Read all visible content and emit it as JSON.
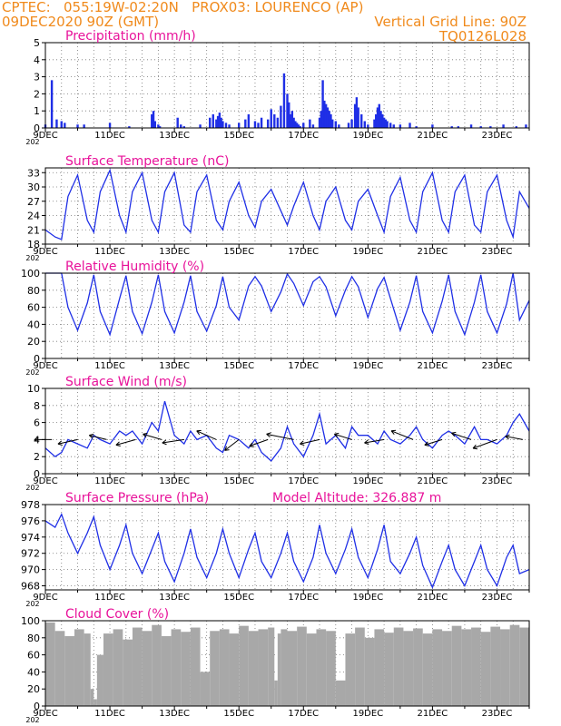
{
  "header": {
    "line1": "CPTEC:   055:19W-02:20N   PROX03: LOURENCO (AP)",
    "line2": "09DEC2020 90Z (GMT)",
    "grid_note": "Vertical Grid Line: 90Z",
    "run_id": "TQ0126L028"
  },
  "colors": {
    "header": "#f08a1c",
    "title": "#e8129a",
    "series": "#1f2fe6",
    "cloud": "#a8a8a8"
  },
  "x_ticks": [
    "9DEC",
    "11DEC",
    "13DEC",
    "15DEC",
    "17DEC",
    "19DEC",
    "21DEC",
    "23DEC"
  ],
  "x_year": "202",
  "chart_data": [
    {
      "id": "precip",
      "type": "bar",
      "title": "Precipitation (mm/h)",
      "ylim": [
        0,
        5
      ],
      "yticks": [
        0,
        1,
        2,
        3,
        4,
        5
      ],
      "x": [
        0,
        0.2,
        0.35,
        0.5,
        0.6,
        1.0,
        1.2,
        2.0,
        2.6,
        3.3,
        3.35,
        3.4,
        3.5,
        3.55,
        4.1,
        4.2,
        4.3,
        4.8,
        5.1,
        5.2,
        5.3,
        5.35,
        5.4,
        5.45,
        5.5,
        5.6,
        5.7,
        6.0,
        6.2,
        6.3,
        6.5,
        6.6,
        6.7,
        6.9,
        7.0,
        7.1,
        7.2,
        7.3,
        7.4,
        7.5,
        7.55,
        7.6,
        7.65,
        7.7,
        7.75,
        7.8,
        7.85,
        7.9,
        8.0,
        8.2,
        8.3,
        8.5,
        8.55,
        8.6,
        8.65,
        8.7,
        8.75,
        8.8,
        8.85,
        8.9,
        9.0,
        9.1,
        9.4,
        9.5,
        9.6,
        9.65,
        9.7,
        9.8,
        9.9,
        10.0,
        10.2,
        10.25,
        10.3,
        10.35,
        10.4,
        10.45,
        10.5,
        10.55,
        10.6,
        10.7,
        10.8,
        11.0,
        11.3,
        11.5,
        12.0,
        12.6,
        12.8,
        13.2,
        13.5,
        13.8,
        14.2,
        14.6,
        14.9
      ],
      "values": [
        0.2,
        2.8,
        0.5,
        0.4,
        0.3,
        0.2,
        0.2,
        0.3,
        0.1,
        0.8,
        1.0,
        0.4,
        0.2,
        0.1,
        0.6,
        0.2,
        0.1,
        0.2,
        0.6,
        0.8,
        0.5,
        0.7,
        0.9,
        0.6,
        0.4,
        0.3,
        0.2,
        0.3,
        0.5,
        0.8,
        0.4,
        0.3,
        0.6,
        0.5,
        1.1,
        0.8,
        0.6,
        1.3,
        3.2,
        2.0,
        1.5,
        0.8,
        1.0,
        0.6,
        0.4,
        0.3,
        0.2,
        0.1,
        0.3,
        0.5,
        0.2,
        0.6,
        1.0,
        2.8,
        1.6,
        1.4,
        1.2,
        1.0,
        0.8,
        0.5,
        0.4,
        0.2,
        0.3,
        0.5,
        1.4,
        1.8,
        1.2,
        0.8,
        0.4,
        0.2,
        0.5,
        0.8,
        1.2,
        1.4,
        1.0,
        0.8,
        0.6,
        0.5,
        0.4,
        0.3,
        0.2,
        0.2,
        0.3,
        0.1,
        0.2,
        0.1,
        0.1,
        0.2,
        0.1,
        0.1,
        0.2,
        0.1,
        0.2
      ]
    },
    {
      "id": "temp",
      "type": "line",
      "title": "Surface Temperature (nC)",
      "ylim": [
        18,
        34
      ],
      "yticks": [
        18,
        21,
        24,
        27,
        30,
        33
      ],
      "x": [
        0.0,
        0.3,
        0.5,
        0.7,
        1.0,
        1.3,
        1.5,
        1.7,
        2.0,
        2.3,
        2.5,
        2.7,
        3.0,
        3.3,
        3.5,
        3.7,
        4.0,
        4.3,
        4.5,
        4.7,
        5.0,
        5.3,
        5.5,
        5.7,
        6.0,
        6.3,
        6.5,
        6.7,
        7.0,
        7.3,
        7.5,
        7.7,
        8.0,
        8.3,
        8.5,
        8.7,
        9.0,
        9.3,
        9.5,
        9.7,
        10.0,
        10.3,
        10.5,
        10.7,
        11.0,
        11.3,
        11.5,
        11.7,
        12.0,
        12.3,
        12.5,
        12.7,
        13.0,
        13.3,
        13.5,
        13.7,
        14.0,
        14.3,
        14.5,
        14.7,
        15.0
      ],
      "values": [
        21,
        19.5,
        19.0,
        28,
        32.5,
        23,
        20.5,
        29,
        33.5,
        24,
        20.5,
        29,
        33.0,
        23,
        20.5,
        29,
        33.0,
        22,
        20.5,
        29,
        32.5,
        23,
        21.0,
        27,
        31.0,
        24,
        21.5,
        27,
        29.5,
        25,
        22.0,
        26,
        31.0,
        24,
        21.0,
        27,
        30.0,
        23,
        21.0,
        27,
        29.5,
        24,
        20.5,
        28,
        32.0,
        23,
        20.5,
        29,
        33.0,
        23,
        20.5,
        29,
        32.5,
        22,
        20.5,
        29,
        32.5,
        23,
        19.5,
        29,
        25.5
      ]
    },
    {
      "id": "rh",
      "type": "line",
      "title": "Relative Humidity (%)",
      "ylim": [
        0,
        100
      ],
      "yticks": [
        0,
        20,
        40,
        60,
        80,
        100
      ],
      "x": [
        0.0,
        0.3,
        0.5,
        0.7,
        1.0,
        1.3,
        1.5,
        1.7,
        2.0,
        2.3,
        2.5,
        2.7,
        3.0,
        3.3,
        3.5,
        3.7,
        4.0,
        4.3,
        4.5,
        4.7,
        5.0,
        5.3,
        5.5,
        5.7,
        6.0,
        6.3,
        6.5,
        6.7,
        7.0,
        7.3,
        7.5,
        7.7,
        8.0,
        8.3,
        8.5,
        8.7,
        9.0,
        9.3,
        9.5,
        9.7,
        10.0,
        10.3,
        10.5,
        10.7,
        11.0,
        11.3,
        11.5,
        11.7,
        12.0,
        12.3,
        12.5,
        12.7,
        13.0,
        13.3,
        13.5,
        13.7,
        14.0,
        14.3,
        14.5,
        14.7,
        15.0
      ],
      "values": [
        100,
        100,
        100,
        60,
        33,
        65,
        98,
        55,
        28,
        70,
        97,
        55,
        29,
        66,
        98,
        55,
        30,
        66,
        97,
        55,
        32,
        62,
        96,
        60,
        45,
        85,
        96,
        85,
        55,
        78,
        99,
        88,
        62,
        90,
        96,
        84,
        50,
        80,
        96,
        84,
        48,
        82,
        95,
        70,
        33,
        66,
        97,
        55,
        30,
        67,
        98,
        55,
        28,
        66,
        98,
        55,
        30,
        64,
        100,
        45,
        68
      ]
    },
    {
      "id": "wind",
      "type": "line",
      "title": "Surface Wind (m/s)",
      "ylim": [
        0,
        10
      ],
      "yticks": [
        0,
        2,
        4,
        6,
        8,
        10
      ],
      "x": [
        0.0,
        0.3,
        0.5,
        0.7,
        1.0,
        1.3,
        1.5,
        1.7,
        2.0,
        2.3,
        2.5,
        2.7,
        3.0,
        3.3,
        3.5,
        3.7,
        4.0,
        4.3,
        4.5,
        4.7,
        5.0,
        5.3,
        5.5,
        5.7,
        6.0,
        6.3,
        6.5,
        6.7,
        7.0,
        7.3,
        7.5,
        7.7,
        8.0,
        8.3,
        8.5,
        8.7,
        9.0,
        9.3,
        9.5,
        9.7,
        10.0,
        10.3,
        10.5,
        10.7,
        11.0,
        11.3,
        11.5,
        11.7,
        12.0,
        12.3,
        12.5,
        12.7,
        13.0,
        13.3,
        13.5,
        13.7,
        14.0,
        14.3,
        14.5,
        14.7,
        15.0
      ],
      "values": [
        3.0,
        2.0,
        2.5,
        4.0,
        3.5,
        3.0,
        4.5,
        4.0,
        3.5,
        5.0,
        4.5,
        5.0,
        3.5,
        6.0,
        5.0,
        8.5,
        4.5,
        3.5,
        5.0,
        4.0,
        4.5,
        3.0,
        2.5,
        4.5,
        4.0,
        3.0,
        4.0,
        2.5,
        1.5,
        3.0,
        5.5,
        3.5,
        2.0,
        4.5,
        7.0,
        3.5,
        4.5,
        3.0,
        5.5,
        4.5,
        4.5,
        3.5,
        5.0,
        4.0,
        3.5,
        4.5,
        5.5,
        4.0,
        3.0,
        4.5,
        5.0,
        4.5,
        3.5,
        5.5,
        4.0,
        4.0,
        3.5,
        4.5,
        6.0,
        7.0,
        5.0
      ],
      "vectors": {
        "x": [
          0.2,
          1.0,
          1.9,
          2.8,
          3.6,
          4.3,
          5.3,
          6.0,
          6.9,
          7.7,
          8.5,
          9.5,
          10.5,
          11.4,
          12.3,
          13.2,
          14.0,
          14.8
        ],
        "dx": [
          -1.6,
          -1.8,
          -1.6,
          -1.8,
          -1.7,
          -2.0,
          -1.8,
          -1.3,
          -1.7,
          -2.5,
          -1.8,
          -1.6,
          -1.8,
          -2.0,
          -1.6,
          -1.8,
          -2.2,
          -1.6
        ],
        "dy": [
          0.0,
          -0.4,
          0.4,
          -0.5,
          0.5,
          -0.3,
          0.8,
          -1.0,
          -0.6,
          0.5,
          -0.4,
          0.5,
          -0.3,
          0.8,
          -0.5,
          0.6,
          -0.8,
          0.3
        ]
      }
    },
    {
      "id": "pressure",
      "type": "line",
      "title": "Surface Pressure (hPa)",
      "annotation": "Model Altitude: 326.887  m",
      "ylim": [
        967.5,
        978
      ],
      "yticks": [
        968,
        970,
        972,
        974,
        976,
        978
      ],
      "x": [
        0.0,
        0.3,
        0.5,
        0.7,
        1.0,
        1.3,
        1.5,
        1.7,
        2.0,
        2.3,
        2.5,
        2.7,
        3.0,
        3.3,
        3.5,
        3.7,
        4.0,
        4.3,
        4.5,
        4.7,
        5.0,
        5.3,
        5.5,
        5.7,
        6.0,
        6.3,
        6.5,
        6.7,
        7.0,
        7.3,
        7.5,
        7.7,
        8.0,
        8.3,
        8.5,
        8.7,
        9.0,
        9.3,
        9.5,
        9.7,
        10.0,
        10.3,
        10.5,
        10.7,
        11.0,
        11.3,
        11.5,
        11.7,
        12.0,
        12.3,
        12.5,
        12.7,
        13.0,
        13.3,
        13.5,
        13.7,
        14.0,
        14.3,
        14.5,
        14.7,
        15.0
      ],
      "values": [
        976.0,
        975.2,
        976.8,
        974.5,
        972.0,
        974.5,
        976.5,
        973.0,
        970.0,
        973.0,
        975.5,
        972.0,
        969.5,
        972.5,
        974.5,
        971.0,
        968.5,
        972.0,
        975.0,
        971.5,
        969.0,
        972.0,
        975.0,
        972.0,
        969.0,
        972.5,
        974.5,
        971.0,
        969.0,
        972.0,
        974.5,
        971.0,
        968.5,
        971.5,
        975.5,
        972.0,
        969.5,
        972.5,
        975.0,
        971.5,
        969.0,
        972.5,
        975.5,
        971.0,
        969.5,
        972.0,
        974.0,
        970.5,
        967.8,
        971.0,
        973.0,
        970.0,
        968.0,
        971.0,
        973.0,
        970.0,
        968.0,
        971.5,
        973.0,
        969.5,
        970.0
      ]
    },
    {
      "id": "cloud",
      "type": "area",
      "title": "Cloud Cover (%)",
      "ylim": [
        0,
        100
      ],
      "yticks": [
        0,
        20,
        40,
        60,
        80,
        100
      ],
      "x": [
        0.0,
        0.3,
        0.6,
        0.9,
        1.2,
        1.4,
        1.5,
        1.6,
        1.8,
        2.1,
        2.4,
        2.7,
        3.0,
        3.3,
        3.6,
        3.9,
        4.2,
        4.5,
        4.8,
        5.1,
        5.4,
        5.7,
        6.0,
        6.3,
        6.6,
        6.9,
        7.1,
        7.2,
        7.3,
        7.5,
        7.8,
        8.1,
        8.4,
        8.7,
        9.0,
        9.3,
        9.6,
        9.9,
        10.2,
        10.5,
        10.8,
        11.1,
        11.4,
        11.7,
        12.0,
        12.3,
        12.6,
        12.9,
        13.2,
        13.5,
        13.8,
        14.1,
        14.4,
        14.7,
        15.0
      ],
      "values": [
        98,
        88,
        82,
        90,
        85,
        20,
        8,
        60,
        85,
        90,
        78,
        92,
        88,
        95,
        82,
        90,
        87,
        92,
        40,
        88,
        90,
        85,
        94,
        88,
        90,
        92,
        30,
        85,
        90,
        88,
        93,
        85,
        90,
        88,
        30,
        85,
        92,
        80,
        90,
        86,
        92,
        88,
        91,
        85,
        90,
        88,
        94,
        90,
        92,
        87,
        93,
        90,
        95,
        92,
        98
      ]
    }
  ]
}
